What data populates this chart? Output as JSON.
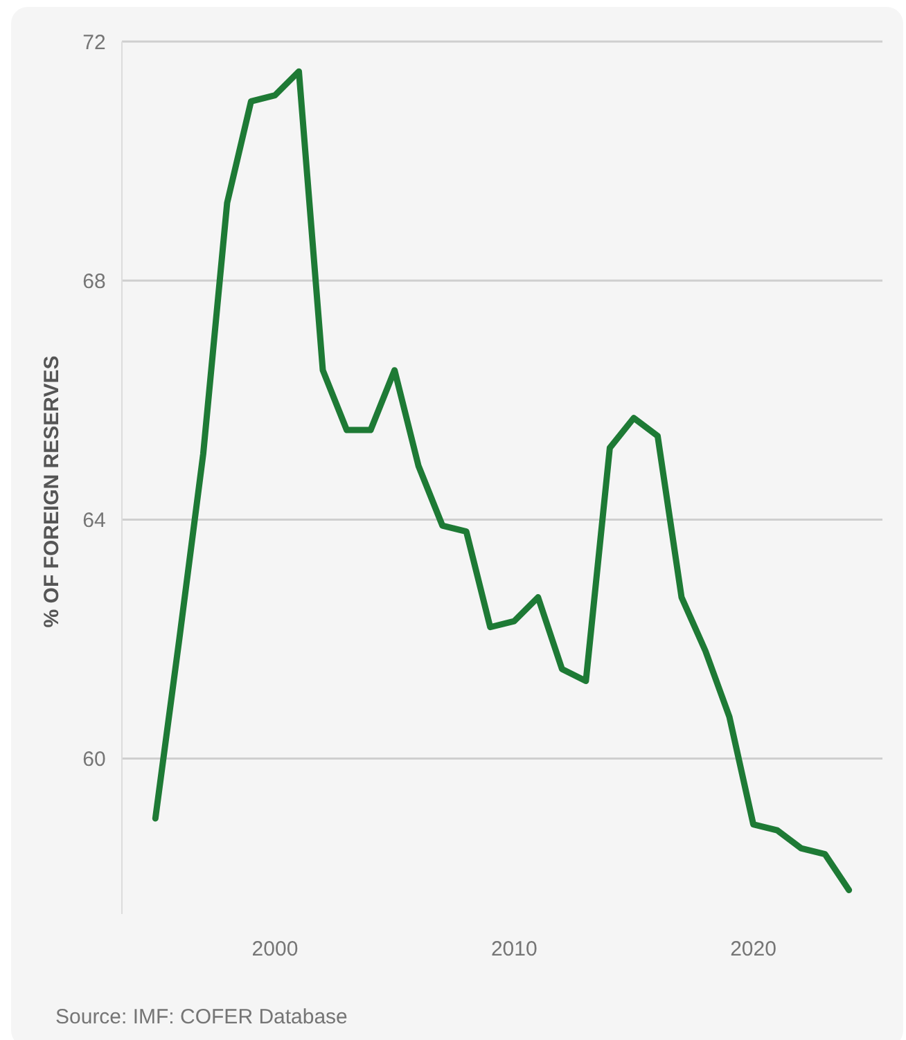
{
  "chart_data": {
    "type": "line",
    "ylabel": "% OF FOREIGN RESERVES",
    "annotations": [
      "Source: IMF: COFER Database"
    ],
    "x": [
      1995,
      1996,
      1997,
      1998,
      1999,
      2000,
      2001,
      2002,
      2003,
      2004,
      2005,
      2006,
      2007,
      2008,
      2009,
      2010,
      2011,
      2012,
      2013,
      2014,
      2015,
      2016,
      2017,
      2018,
      2019,
      2020,
      2021,
      2022,
      2023,
      2024
    ],
    "series": [
      {
        "color": "#1e7a35",
        "values": [
          59.0,
          62.0,
          65.1,
          69.3,
          71.0,
          71.1,
          71.5,
          66.5,
          65.5,
          65.5,
          66.5,
          64.9,
          63.9,
          63.8,
          62.2,
          62.3,
          62.7,
          61.5,
          61.3,
          65.2,
          65.7,
          65.4,
          62.7,
          61.8,
          60.7,
          58.9,
          58.8,
          58.5,
          58.4,
          57.8
        ]
      }
    ],
    "xlim": [
      1993.6,
      2025.4
    ],
    "xticks": [
      2000,
      2010,
      2020
    ],
    "ylim": [
      57.4,
      72
    ],
    "yticks": [
      60,
      64,
      68,
      72
    ],
    "grid": "y",
    "marker": "none",
    "line_style": "solid"
  }
}
